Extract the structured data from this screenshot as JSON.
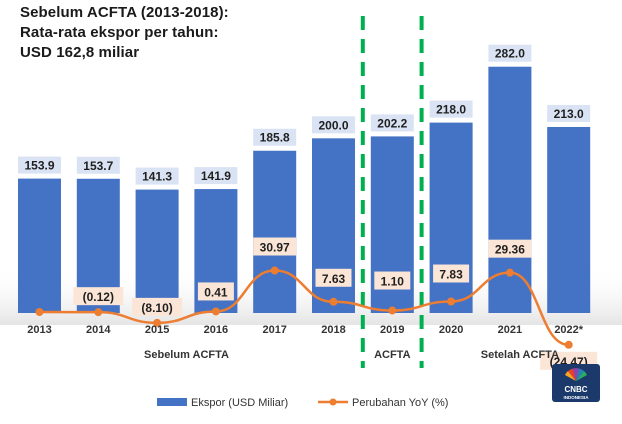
{
  "title": {
    "line1": "Sebelum ACFTA (2013-2018):",
    "line2": "Rata-rata ekspor per tahun:",
    "line3": "USD 162,8 miliar"
  },
  "colors": {
    "bar": "#4472c4",
    "line": "#ed7d31",
    "bar_label_bg": "#dae3f3",
    "line_label_bg": "#fbe5d6",
    "divider": "#00b050"
  },
  "chart_data": {
    "type": "bar",
    "title": "Sebelum ACFTA (2013-2018): Rata-rata ekspor per tahun: USD 162,8 miliar",
    "categories": [
      "2013",
      "2014",
      "2015",
      "2016",
      "2017",
      "2018",
      "2019",
      "2020",
      "2021",
      "2022*"
    ],
    "series": [
      {
        "name": "Ekspor (USD Miliar)",
        "type": "bar",
        "values": [
          153.9,
          153.7,
          141.3,
          141.9,
          185.8,
          200.0,
          202.2,
          218.0,
          282.0,
          213.0
        ],
        "labels": [
          "153.9",
          "153.7",
          "141.3",
          "141.9",
          "185.8",
          "200.0",
          "202.2",
          "218.0",
          "282.0",
          "213.0"
        ]
      },
      {
        "name": "Perubahan YoY (%)",
        "type": "line",
        "values": [
          0,
          -0.12,
          -8.1,
          0.41,
          30.97,
          7.63,
          1.1,
          7.83,
          29.36,
          -24.47
        ],
        "labels": [
          "",
          "(0.12)",
          "(8.10)",
          "0.41",
          "30.97",
          "7.63",
          "1.10",
          "7.83",
          "29.36",
          "(24.47)"
        ]
      }
    ],
    "bar_axis_range": [
      0,
      300
    ],
    "line_axis_range": [
      -40,
      200
    ],
    "periods": [
      {
        "label": "Sebelum ACFTA",
        "from": "2013",
        "to": "2018"
      },
      {
        "label": "ACFTA",
        "from": "2019",
        "to": "2019"
      },
      {
        "label": "Setelah ACFTA",
        "from": "2020",
        "to": "2022*"
      }
    ],
    "legend": {
      "position": "bottom",
      "items": [
        "Ekspor (USD Miliar)",
        "Perubahan YoY (%)"
      ]
    }
  },
  "logo": {
    "name": "CNBC",
    "sub": "INDONESIA",
    "icon": "peacock-icon"
  }
}
